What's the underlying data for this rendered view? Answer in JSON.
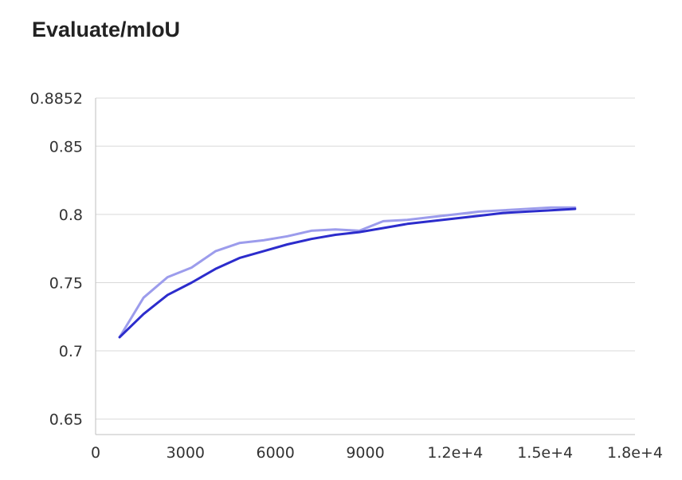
{
  "title": "Evaluate/mIoU",
  "chart_data": {
    "type": "line",
    "title": "Evaluate/mIoU",
    "xlabel": "",
    "ylabel": "",
    "xlim": [
      0,
      18000
    ],
    "ylim": [
      0.6387,
      0.8852
    ],
    "grid": true,
    "legend": "none",
    "x_ticks": [
      "0",
      "3000",
      "6000",
      "9000",
      "1.2e+4",
      "1.5e+4",
      "1.8e+4"
    ],
    "x_tick_values": [
      0,
      3000,
      6000,
      9000,
      12000,
      15000,
      18000
    ],
    "y_ticks": [
      "0.8852",
      "0.85",
      "0.8",
      "0.75",
      "0.7",
      "0.65"
    ],
    "y_tick_values": [
      0.8852,
      0.85,
      0.8,
      0.75,
      0.7,
      0.65
    ],
    "series": [
      {
        "color": "#9c9cec",
        "x": [
          800,
          1600,
          2400,
          3200,
          4000,
          4800,
          5600,
          6400,
          7200,
          8000,
          8800,
          9600,
          10400,
          11200,
          12000,
          12800,
          13600,
          14400,
          15200,
          16000
        ],
        "y": [
          0.71,
          0.739,
          0.754,
          0.761,
          0.773,
          0.779,
          0.781,
          0.784,
          0.788,
          0.789,
          0.788,
          0.795,
          0.796,
          0.798,
          0.8,
          0.802,
          0.803,
          0.804,
          0.805,
          0.805
        ]
      },
      {
        "color": "#2c2ccc",
        "x": [
          800,
          1600,
          2400,
          3200,
          4000,
          4800,
          5600,
          6400,
          7200,
          8000,
          8800,
          9600,
          10400,
          11200,
          12000,
          12800,
          13600,
          14400,
          15200,
          16000
        ],
        "y": [
          0.71,
          0.727,
          0.741,
          0.75,
          0.76,
          0.768,
          0.773,
          0.778,
          0.782,
          0.785,
          0.787,
          0.79,
          0.793,
          0.795,
          0.797,
          0.799,
          0.801,
          0.802,
          0.803,
          0.804
        ]
      }
    ]
  }
}
